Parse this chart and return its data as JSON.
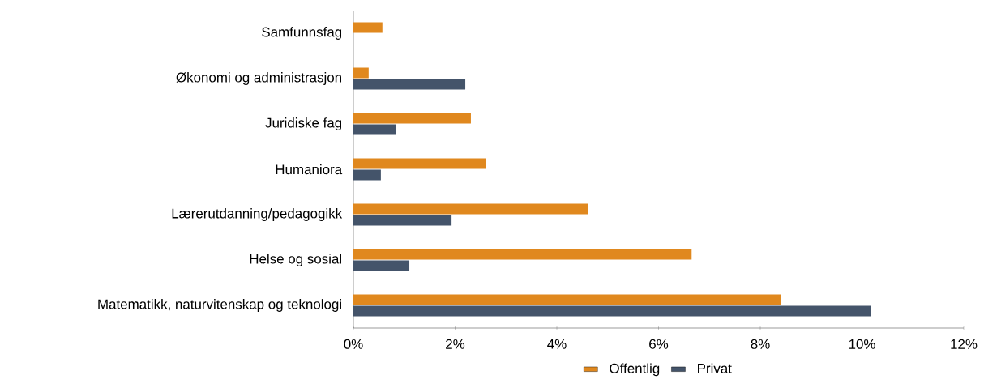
{
  "chart_data": {
    "type": "bar",
    "orientation": "horizontal",
    "categories": [
      "Samfunnsfag",
      "Økonomi og administrasjon",
      "Juridiske fag",
      "Humaniora",
      "Lærerutdanning/pedagogikk",
      "Helse og sosial",
      "Matematikk, naturvitenskap og teknologi"
    ],
    "series": [
      {
        "name": "Offentlig",
        "color": "#e0881e",
        "values": [
          0.57,
          0.3,
          2.31,
          2.61,
          4.62,
          6.65,
          8.4
        ]
      },
      {
        "name": "Privat",
        "color": "#44546a",
        "values": [
          null,
          2.2,
          0.83,
          0.54,
          1.93,
          1.1,
          10.18
        ]
      }
    ],
    "xlim": [
      0,
      12
    ],
    "xticks": [
      {
        "value": 0,
        "label": "0%"
      },
      {
        "value": 2,
        "label": "2%"
      },
      {
        "value": 4,
        "label": "4%"
      },
      {
        "value": 6,
        "label": "6%"
      },
      {
        "value": 8,
        "label": "8%"
      },
      {
        "value": 10,
        "label": "10%"
      },
      {
        "value": 12,
        "label": "12%"
      }
    ],
    "grid": false,
    "legend": "bottom"
  }
}
